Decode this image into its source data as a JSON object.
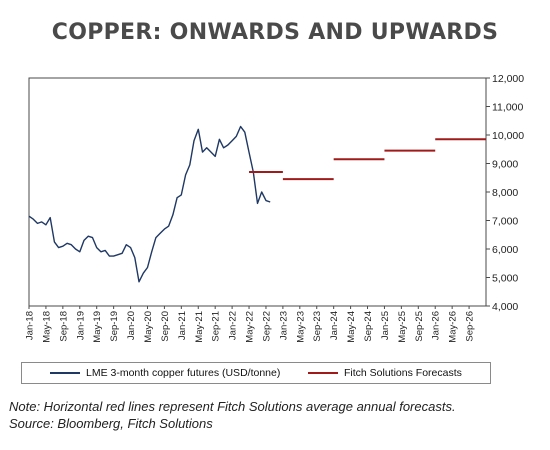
{
  "title": "COPPER: ONWARDS AND UPWARDS",
  "chart_data": {
    "type": "line",
    "ylim": [
      4000,
      12000
    ],
    "y_ticks": [
      4000,
      5000,
      6000,
      7000,
      8000,
      9000,
      10000,
      11000,
      12000
    ],
    "y_tick_labels": [
      "4,000",
      "5,000",
      "6,000",
      "7,000",
      "8,000",
      "9,000",
      "10,000",
      "11,000",
      "12,000"
    ],
    "y_axis_side": "right",
    "x_range": [
      "2018-01",
      "2026-12"
    ],
    "x_ticks": [
      "2018-01",
      "2018-05",
      "2018-09",
      "2019-01",
      "2019-05",
      "2019-09",
      "2020-01",
      "2020-05",
      "2020-09",
      "2021-01",
      "2021-05",
      "2021-09",
      "2022-01",
      "2022-05",
      "2022-09",
      "2023-01",
      "2023-05",
      "2023-09",
      "2024-01",
      "2024-05",
      "2024-09",
      "2025-01",
      "2025-05",
      "2025-09",
      "2026-01",
      "2026-05",
      "2026-09"
    ],
    "x_tick_labels": [
      "Jan-18",
      "May-18",
      "Sep-18",
      "Jan-19",
      "May-19",
      "Sep-19",
      "Jan-20",
      "May-20",
      "Sep-20",
      "Jan-21",
      "May-21",
      "Sep-21",
      "Jan-22",
      "May-22",
      "Sep-22",
      "Jan-23",
      "May-23",
      "Sep-23",
      "Jan-24",
      "May-24",
      "Sep-24",
      "Jan-25",
      "May-25",
      "Sep-25",
      "Jan-26",
      "May-26",
      "Sep-26"
    ],
    "grid": false,
    "legend_position": "bottom",
    "series": [
      {
        "name": "LME 3-month copper futures (USD/tonne)",
        "color": "#1f3864",
        "points": [
          [
            "2018-01",
            7150
          ],
          [
            "2018-02",
            7050
          ],
          [
            "2018-03",
            6900
          ],
          [
            "2018-04",
            6950
          ],
          [
            "2018-05",
            6850
          ],
          [
            "2018-06",
            7100
          ],
          [
            "2018-07",
            6250
          ],
          [
            "2018-08",
            6050
          ],
          [
            "2018-09",
            6100
          ],
          [
            "2018-10",
            6200
          ],
          [
            "2018-11",
            6150
          ],
          [
            "2018-12",
            6000
          ],
          [
            "2019-01",
            5900
          ],
          [
            "2019-02",
            6300
          ],
          [
            "2019-03",
            6450
          ],
          [
            "2019-04",
            6400
          ],
          [
            "2019-05",
            6050
          ],
          [
            "2019-06",
            5900
          ],
          [
            "2019-07",
            5950
          ],
          [
            "2019-08",
            5750
          ],
          [
            "2019-09",
            5750
          ],
          [
            "2019-10",
            5800
          ],
          [
            "2019-11",
            5850
          ],
          [
            "2019-12",
            6150
          ],
          [
            "2020-01",
            6050
          ],
          [
            "2020-02",
            5700
          ],
          [
            "2020-03",
            4850
          ],
          [
            "2020-04",
            5150
          ],
          [
            "2020-05",
            5350
          ],
          [
            "2020-06",
            5900
          ],
          [
            "2020-07",
            6400
          ],
          [
            "2020-08",
            6550
          ],
          [
            "2020-09",
            6700
          ],
          [
            "2020-10",
            6800
          ],
          [
            "2020-11",
            7200
          ],
          [
            "2020-12",
            7800
          ],
          [
            "2021-01",
            7900
          ],
          [
            "2021-02",
            8600
          ],
          [
            "2021-03",
            8950
          ],
          [
            "2021-04",
            9800
          ],
          [
            "2021-05",
            10200
          ],
          [
            "2021-06",
            9400
          ],
          [
            "2021-07",
            9550
          ],
          [
            "2021-08",
            9400
          ],
          [
            "2021-09",
            9250
          ],
          [
            "2021-10",
            9850
          ],
          [
            "2021-11",
            9550
          ],
          [
            "2021-12",
            9650
          ],
          [
            "2022-01",
            9800
          ],
          [
            "2022-02",
            9950
          ],
          [
            "2022-03",
            10300
          ],
          [
            "2022-04",
            10100
          ],
          [
            "2022-05",
            9400
          ],
          [
            "2022-06",
            8700
          ],
          [
            "2022-07",
            7600
          ],
          [
            "2022-08",
            8000
          ],
          [
            "2022-09",
            7700
          ],
          [
            "2022-10",
            7650
          ]
        ]
      },
      {
        "name": "Fitch Solutions Forecasts",
        "color": "#a01a1a",
        "segments": [
          {
            "start": "2022-05",
            "end": "2022-12",
            "value": 8700
          },
          {
            "start": "2023-01",
            "end": "2023-12",
            "value": 8450
          },
          {
            "start": "2024-01",
            "end": "2024-12",
            "value": 9150
          },
          {
            "start": "2025-01",
            "end": "2025-12",
            "value": 9450
          },
          {
            "start": "2026-01",
            "end": "2026-12",
            "value": 9850
          }
        ]
      }
    ]
  },
  "note_lines": [
    "Note: Horizontal red lines represent Fitch Solutions average annual forecasts.",
    "Source: Bloomberg, Fitch Solutions"
  ]
}
